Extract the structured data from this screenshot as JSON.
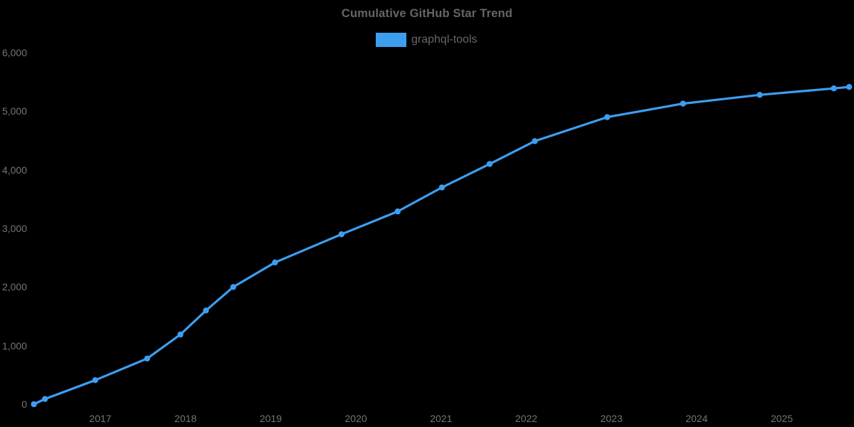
{
  "chart": {
    "title": "Cumulative GitHub Star Trend",
    "legend_label": "graphql-tools"
  },
  "colors": {
    "accent": "#3D9EF0",
    "title_text": "#666666",
    "legend_text": "#666666",
    "axis_label": "#757575",
    "background": "#000000"
  },
  "chart_data": {
    "type": "line",
    "title": "Cumulative GitHub Star Trend",
    "legend": [
      "graphql-tools"
    ],
    "legend_position": "top-center",
    "grid": false,
    "xlabel": "",
    "ylabel": "",
    "ylim": [
      0,
      6000
    ],
    "xlim": [
      2015.82,
      2025.85
    ],
    "x_ticks": [
      2017,
      2018,
      2019,
      2020,
      2021,
      2022,
      2023,
      2024,
      2025
    ],
    "y_ticks": {
      "labels": [
        "0",
        "1,000",
        "2,000",
        "3,000",
        "4,000",
        "5,000",
        "6,000"
      ],
      "values": [
        0,
        1000,
        2000,
        3000,
        4000,
        5000,
        6000
      ]
    },
    "series": [
      {
        "name": "graphql-tools",
        "x": [
          2016.22,
          2016.35,
          2016.94,
          2017.55,
          2017.94,
          2018.24,
          2018.56,
          2019.05,
          2019.83,
          2020.49,
          2021.01,
          2021.57,
          2022.1,
          2022.95,
          2023.84,
          2024.74,
          2025.61,
          2025.79
        ],
        "values": [
          0,
          90,
          410,
          780,
          1190,
          1600,
          2000,
          2420,
          2900,
          3290,
          3700,
          4100,
          4490,
          4900,
          5130,
          5280,
          5390,
          5415
        ]
      }
    ]
  }
}
